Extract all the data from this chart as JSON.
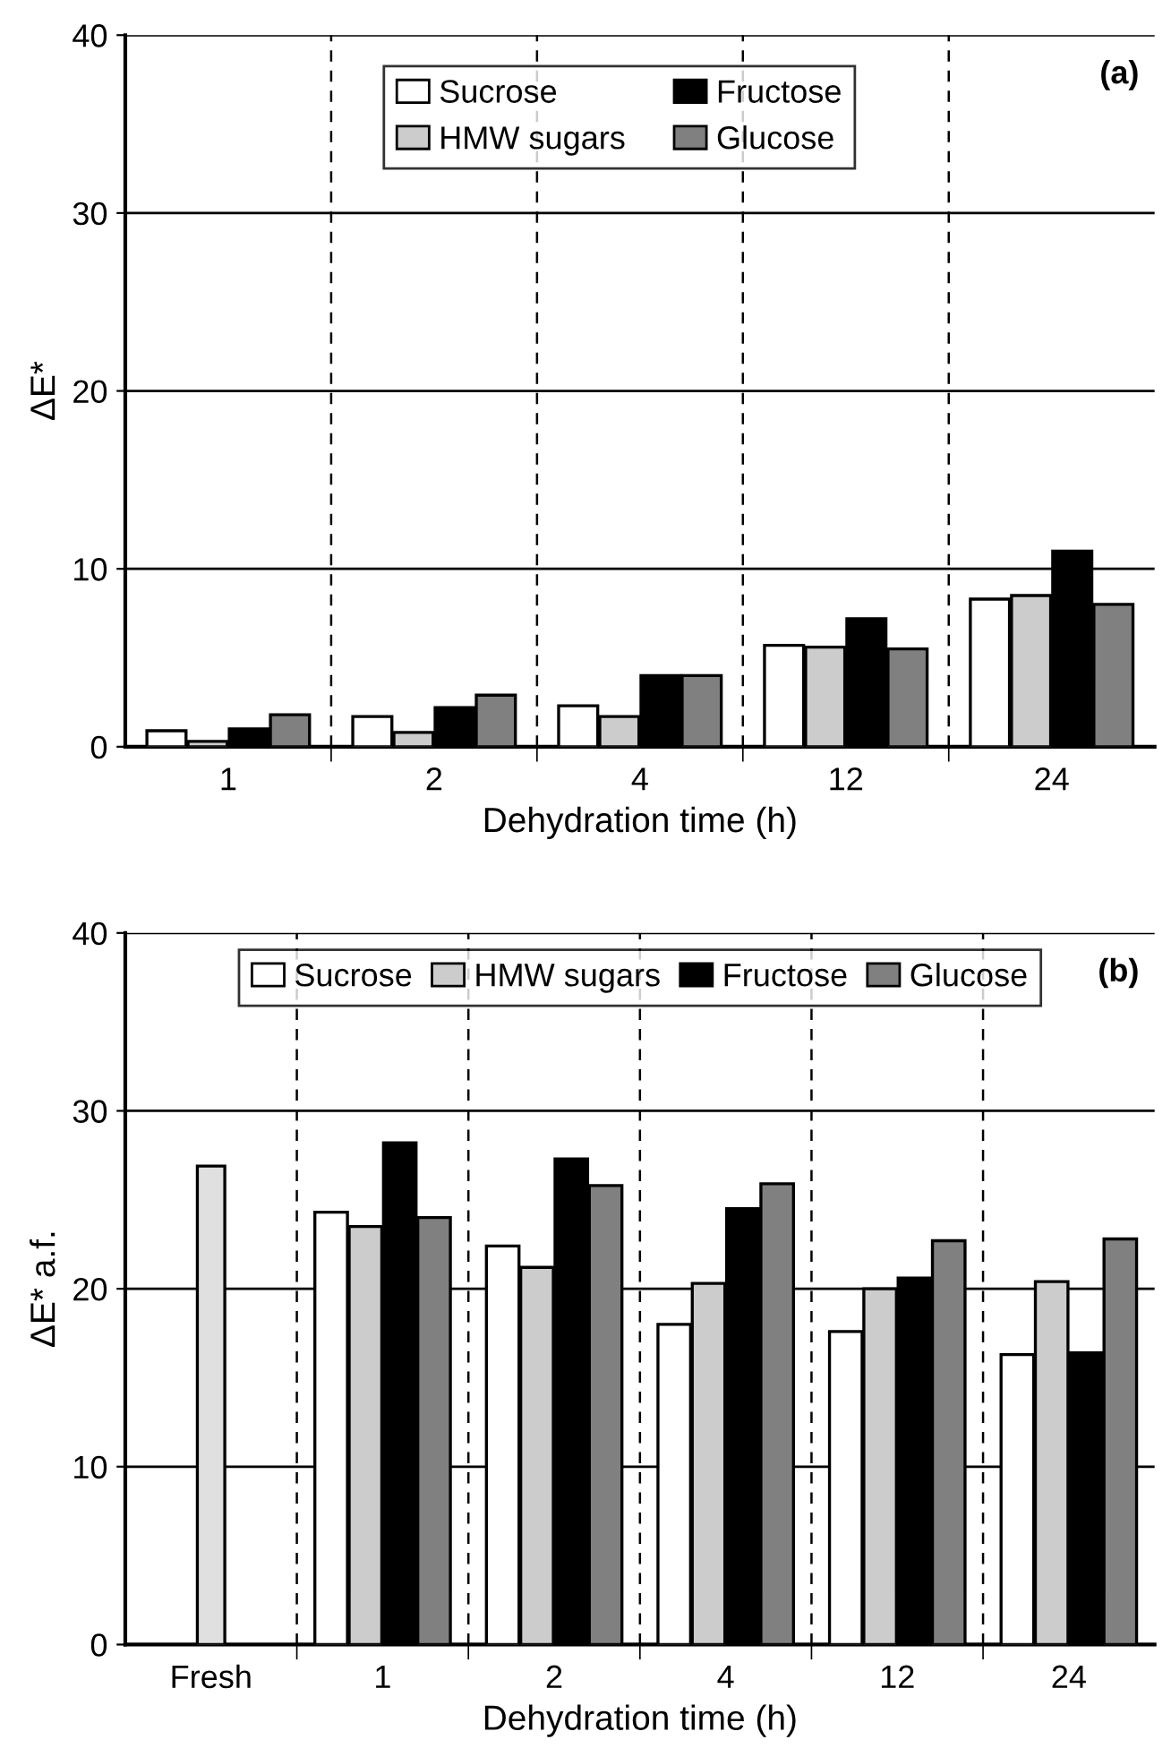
{
  "chart_data": [
    {
      "type": "bar",
      "xlabel": "Dehydration time (h)",
      "ylabel": "ΔE*",
      "annotations": [
        "(a)"
      ],
      "categories": [
        "1",
        "2",
        "4",
        "12",
        "24"
      ],
      "series": [
        {
          "name": "Sucrose",
          "color": "#ffffff",
          "values": [
            0.9,
            1.7,
            2.3,
            5.7,
            8.3
          ]
        },
        {
          "name": "HMW sugars",
          "color": "#cccccc",
          "values": [
            0.3,
            0.8,
            1.7,
            5.6,
            8.5
          ]
        },
        {
          "name": "Fructose",
          "color": "#000000",
          "values": [
            1.0,
            2.2,
            4.0,
            7.2,
            11.0
          ]
        },
        {
          "name": "Glucose",
          "color": "#808080",
          "values": [
            1.8,
            2.9,
            4.0,
            5.5,
            8.0
          ]
        }
      ],
      "ylim": [
        0,
        40
      ],
      "yticks": [
        0,
        10,
        20,
        30,
        40
      ],
      "grid": true,
      "legend": "top"
    },
    {
      "type": "bar",
      "xlabel": "Dehydration time (h)",
      "ylabel": "ΔE* a.f.",
      "annotations": [
        "(b)"
      ],
      "categories": [
        "Fresh",
        "1",
        "2",
        "4",
        "12",
        "24"
      ],
      "series": [
        {
          "name": "Sucrose",
          "color": "#ffffff",
          "values": [
            null,
            24.3,
            22.4,
            18.0,
            17.6,
            16.3
          ]
        },
        {
          "name": "HMW sugars",
          "color": "#cccccc",
          "values": [
            null,
            23.5,
            21.2,
            20.3,
            20.0,
            20.4
          ]
        },
        {
          "name": "Fructose",
          "color": "#000000",
          "values": [
            null,
            28.2,
            27.3,
            24.5,
            20.6,
            16.4
          ]
        },
        {
          "name": "Glucose",
          "color": "#808080",
          "values": [
            null,
            24.0,
            25.8,
            25.9,
            22.7,
            22.8
          ]
        },
        {
          "color": "#e0e0e0",
          "values": [
            26.9,
            null,
            null,
            null,
            null,
            null
          ]
        }
      ],
      "ylim": [
        0,
        40
      ],
      "yticks": [
        0,
        10,
        20,
        30,
        40
      ],
      "grid": true,
      "legend": "top"
    }
  ]
}
